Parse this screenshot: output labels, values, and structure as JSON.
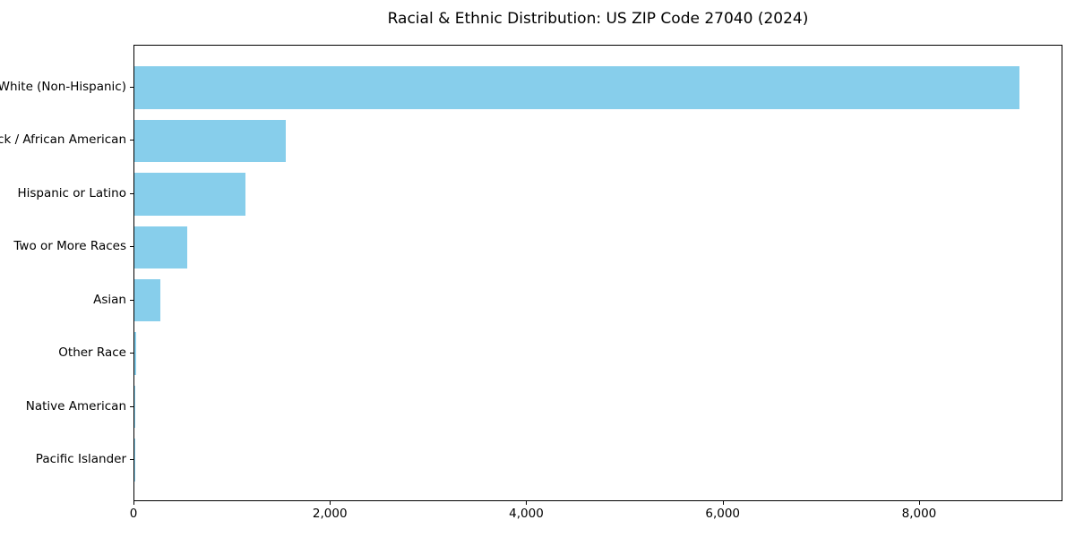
{
  "title": "Racial & Ethnic Distribution: US ZIP Code 27040 (2024)",
  "colors": {
    "bar": "#87CEEB",
    "axis": "#000000",
    "background": "#FFFFFF",
    "text": "#000000"
  },
  "chart_data": {
    "type": "bar",
    "orientation": "horizontal",
    "title": "Racial & Ethnic Distribution: US ZIP Code 27040 (2024)",
    "categories": [
      "White (Non-Hispanic)",
      "Black / African American",
      "Hispanic or Latino",
      "Two or More Races",
      "Asian",
      "Other Race",
      "Native American",
      "Pacific Islander"
    ],
    "values": [
      9010,
      1545,
      1130,
      535,
      260,
      15,
      9,
      3
    ],
    "xlabel": "",
    "ylabel": "",
    "xlim": [
      0,
      9460
    ],
    "xticks": [
      0,
      2000,
      4000,
      6000,
      8000
    ],
    "xtick_labels": [
      "0",
      "2,000",
      "4,000",
      "6,000",
      "8,000"
    ],
    "bar_color": "#87CEEB",
    "bar_height_fraction": 0.8,
    "grid": false,
    "legend": null,
    "value_labels_shown": false
  }
}
